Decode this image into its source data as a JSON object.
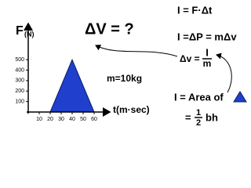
{
  "chart_data": {
    "type": "area",
    "y_label": "F",
    "y_unit": "(N)",
    "x_label": "t(m·sec)",
    "x": [
      20,
      40,
      60
    ],
    "values": [
      0,
      500,
      0
    ],
    "color": "#1f3fcc",
    "xlim": [
      0,
      70
    ],
    "ylim": [
      0,
      800
    ],
    "xticks": [
      10,
      20,
      30,
      40,
      50,
      60
    ],
    "yticks": [
      100,
      200,
      300,
      400,
      500
    ],
    "annotations": {
      "question": "ΔV = ?",
      "impulse": "I = F·Δt",
      "momentum": "I =ΔP = mΔv",
      "dv_lhs": "Δv =",
      "dv_num": "I",
      "dv_den": "m",
      "mass": "m=10kg",
      "area": "I = Area of",
      "half_eq": "=",
      "half_num": "1",
      "half_den": "2",
      "half_rest": "bh"
    }
  }
}
